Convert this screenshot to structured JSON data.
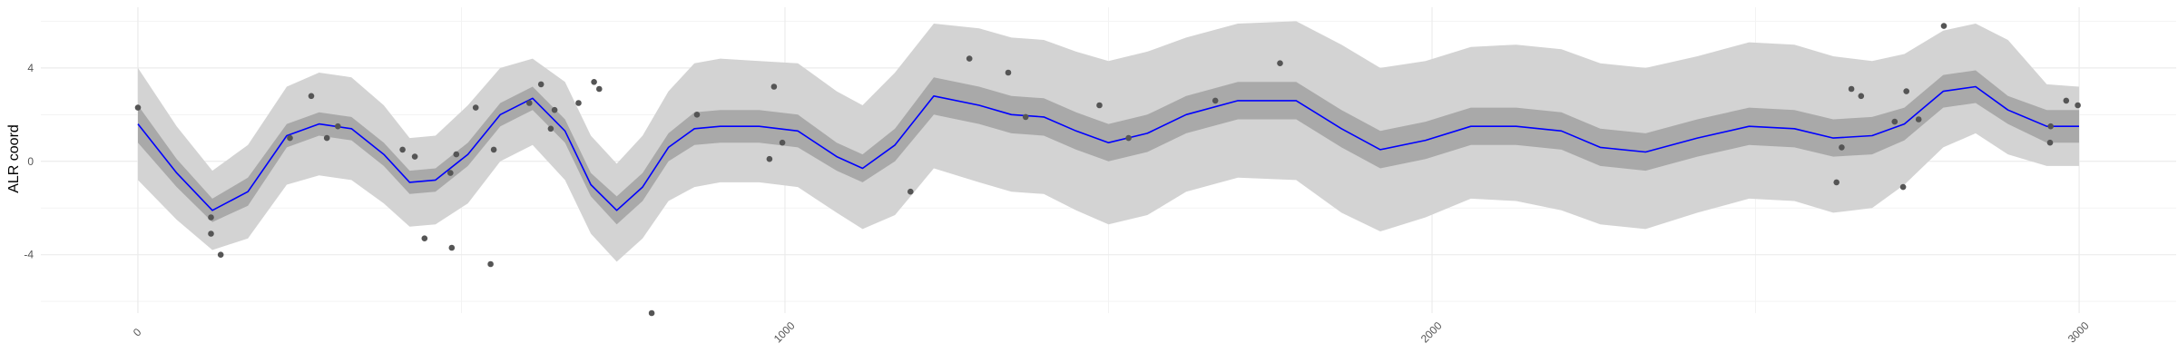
{
  "chart_data": {
    "type": "line",
    "title": "",
    "xlabel": "",
    "ylabel": "ALR coord",
    "xlim": [
      -150,
      3150
    ],
    "ylim": [
      -6.5,
      6.6
    ],
    "x_ticks": [
      0,
      1000,
      2000,
      3000
    ],
    "x_tick_labels": [
      "0",
      "1000",
      "2000",
      "3000"
    ],
    "y_ticks": [
      -4,
      0,
      4
    ],
    "y_tick_labels": [
      "-4",
      "0",
      "4"
    ],
    "grid": true,
    "legend": "none",
    "colors": {
      "line": "#0000ff",
      "inner_band": "#a9a9a9",
      "outer_band": "#d3d3d3",
      "points": "#555555",
      "grid": "#ebebeb"
    },
    "series": [
      {
        "type": "line",
        "x": [
          0,
          60,
          115,
          170,
          230,
          280,
          330,
          380,
          420,
          460,
          510,
          560,
          610,
          660,
          700,
          740,
          780,
          820,
          860,
          900,
          960,
          1020,
          1080,
          1120,
          1170,
          1230,
          1300,
          1350,
          1400,
          1450,
          1500,
          1560,
          1620,
          1700,
          1790,
          1860,
          1920,
          1990,
          2060,
          2130,
          2200,
          2260,
          2330,
          2410,
          2490,
          2560,
          2620,
          2680,
          2730,
          2790,
          2840,
          2890,
          2950,
          3000
        ],
        "y": [
          1.6,
          -0.5,
          -2.1,
          -1.3,
          1.1,
          1.6,
          1.4,
          0.3,
          -0.9,
          -0.8,
          0.3,
          2.0,
          2.7,
          1.3,
          -1.0,
          -2.1,
          -1.1,
          0.6,
          1.4,
          1.5,
          1.5,
          1.3,
          0.2,
          -0.3,
          0.7,
          2.8,
          2.4,
          2.0,
          1.9,
          1.3,
          0.8,
          1.2,
          2.0,
          2.6,
          2.6,
          1.4,
          0.5,
          0.9,
          1.5,
          1.5,
          1.3,
          0.6,
          0.4,
          1.0,
          1.5,
          1.4,
          1.0,
          1.1,
          1.6,
          3.0,
          3.2,
          2.2,
          1.5,
          1.5
        ]
      },
      {
        "type": "band",
        "name": "",
        "x": [
          0,
          60,
          115,
          170,
          230,
          280,
          330,
          380,
          420,
          460,
          510,
          560,
          610,
          660,
          700,
          740,
          780,
          820,
          860,
          900,
          960,
          1020,
          1080,
          1120,
          1170,
          1230,
          1300,
          1350,
          1400,
          1450,
          1500,
          1560,
          1620,
          1700,
          1790,
          1860,
          1920,
          1990,
          2060,
          2130,
          2200,
          2260,
          2330,
          2410,
          2490,
          2560,
          2620,
          2680,
          2730,
          2790,
          2840,
          2890,
          2950,
          3000
        ],
        "lower": [
          0.8,
          -1.1,
          -2.6,
          -1.9,
          0.6,
          1.1,
          0.9,
          -0.2,
          -1.4,
          -1.3,
          -0.2,
          1.5,
          2.2,
          0.8,
          -1.5,
          -2.7,
          -1.7,
          0.0,
          0.7,
          0.8,
          0.8,
          0.6,
          -0.4,
          -0.9,
          0.0,
          2.0,
          1.6,
          1.2,
          1.1,
          0.5,
          0.0,
          0.4,
          1.2,
          1.8,
          1.8,
          0.6,
          -0.3,
          0.1,
          0.7,
          0.7,
          0.5,
          -0.2,
          -0.4,
          0.2,
          0.7,
          0.6,
          0.2,
          0.3,
          0.9,
          2.3,
          2.5,
          1.6,
          0.8,
          0.8
        ],
        "upper": [
          2.4,
          0.1,
          -1.6,
          -0.7,
          1.6,
          2.1,
          1.9,
          0.8,
          -0.4,
          -0.3,
          0.8,
          2.5,
          3.2,
          1.8,
          -0.5,
          -1.5,
          -0.5,
          1.2,
          2.1,
          2.2,
          2.2,
          2.0,
          0.8,
          0.3,
          1.4,
          3.6,
          3.2,
          2.8,
          2.7,
          2.1,
          1.6,
          2.0,
          2.8,
          3.4,
          3.4,
          2.2,
          1.3,
          1.7,
          2.3,
          2.3,
          2.1,
          1.4,
          1.2,
          1.8,
          2.3,
          2.2,
          1.8,
          1.9,
          2.3,
          3.7,
          3.9,
          2.8,
          2.2,
          2.2
        ]
      },
      {
        "type": "band",
        "name": "",
        "x": [
          0,
          60,
          115,
          170,
          230,
          280,
          330,
          380,
          420,
          460,
          510,
          560,
          610,
          660,
          700,
          740,
          780,
          820,
          860,
          900,
          960,
          1020,
          1080,
          1120,
          1170,
          1230,
          1300,
          1350,
          1400,
          1450,
          1500,
          1560,
          1620,
          1700,
          1790,
          1860,
          1920,
          1990,
          2060,
          2130,
          2200,
          2260,
          2330,
          2410,
          2490,
          2560,
          2620,
          2680,
          2730,
          2790,
          2840,
          2890,
          2950,
          3000
        ],
        "lower": [
          -0.8,
          -2.5,
          -3.8,
          -3.3,
          -1.0,
          -0.6,
          -0.8,
          -1.8,
          -2.8,
          -2.7,
          -1.8,
          0.0,
          0.7,
          -0.8,
          -3.1,
          -4.3,
          -3.3,
          -1.7,
          -1.1,
          -0.9,
          -0.9,
          -1.1,
          -2.2,
          -2.9,
          -2.3,
          -0.3,
          -0.9,
          -1.3,
          -1.4,
          -2.1,
          -2.7,
          -2.3,
          -1.3,
          -0.7,
          -0.8,
          -2.2,
          -3.0,
          -2.4,
          -1.6,
          -1.7,
          -2.1,
          -2.7,
          -2.9,
          -2.2,
          -1.6,
          -1.7,
          -2.2,
          -2.0,
          -1.0,
          0.6,
          1.2,
          0.3,
          -0.2,
          -0.2
        ],
        "upper": [
          4.0,
          1.5,
          -0.4,
          0.7,
          3.2,
          3.8,
          3.6,
          2.4,
          1.0,
          1.1,
          2.4,
          4.0,
          4.4,
          3.4,
          1.1,
          -0.1,
          1.1,
          3.0,
          4.2,
          4.4,
          4.3,
          4.2,
          3.0,
          2.4,
          3.8,
          5.9,
          5.7,
          5.3,
          5.2,
          4.7,
          4.3,
          4.7,
          5.3,
          5.9,
          6.0,
          5.0,
          4.0,
          4.3,
          4.9,
          5.0,
          4.8,
          4.2,
          4.0,
          4.5,
          5.1,
          5.0,
          4.5,
          4.3,
          4.6,
          5.6,
          5.9,
          5.2,
          3.3,
          3.2
        ]
      }
    ],
    "points": [
      {
        "x": 0,
        "y": 2.3
      },
      {
        "x": 113,
        "y": -2.4
      },
      {
        "x": 113,
        "y": -3.1
      },
      {
        "x": 128,
        "y": -4.0
      },
      {
        "x": 235,
        "y": 1.0
      },
      {
        "x": 268,
        "y": 2.8
      },
      {
        "x": 292,
        "y": 1.0
      },
      {
        "x": 309,
        "y": 1.5
      },
      {
        "x": 409,
        "y": 0.5
      },
      {
        "x": 428,
        "y": 0.2
      },
      {
        "x": 443,
        "y": -3.3
      },
      {
        "x": 483,
        "y": -0.5
      },
      {
        "x": 485,
        "y": -3.7
      },
      {
        "x": 492,
        "y": 0.3
      },
      {
        "x": 522,
        "y": 2.3
      },
      {
        "x": 545,
        "y": -4.4
      },
      {
        "x": 550,
        "y": 0.5
      },
      {
        "x": 605,
        "y": 2.5
      },
      {
        "x": 623,
        "y": 3.3
      },
      {
        "x": 638,
        "y": 1.4
      },
      {
        "x": 644,
        "y": 2.2
      },
      {
        "x": 681,
        "y": 2.5
      },
      {
        "x": 705,
        "y": 3.4
      },
      {
        "x": 713,
        "y": 3.1
      },
      {
        "x": 794,
        "y": -6.5
      },
      {
        "x": 864,
        "y": 2.0
      },
      {
        "x": 976,
        "y": 0.1
      },
      {
        "x": 983,
        "y": 3.2
      },
      {
        "x": 996,
        "y": 0.8
      },
      {
        "x": 1194,
        "y": -1.3
      },
      {
        "x": 1285,
        "y": 4.4
      },
      {
        "x": 1345,
        "y": 3.8
      },
      {
        "x": 1372,
        "y": 1.9
      },
      {
        "x": 1486,
        "y": 2.4
      },
      {
        "x": 1531,
        "y": 1.0
      },
      {
        "x": 1665,
        "y": 2.6
      },
      {
        "x": 1765,
        "y": 4.2
      },
      {
        "x": 2633,
        "y": 0.6
      },
      {
        "x": 2625,
        "y": -0.9
      },
      {
        "x": 2648,
        "y": 3.1
      },
      {
        "x": 2663,
        "y": 2.8
      },
      {
        "x": 2715,
        "y": 1.7
      },
      {
        "x": 2733,
        "y": 3.0
      },
      {
        "x": 2728,
        "y": -1.1
      },
      {
        "x": 2752,
        "y": 1.8
      },
      {
        "x": 2791,
        "y": 5.8
      },
      {
        "x": 2956,
        "y": 1.5
      },
      {
        "x": 2955,
        "y": 0.8
      },
      {
        "x": 2980,
        "y": 2.6
      },
      {
        "x": 2998,
        "y": 2.4
      }
    ]
  }
}
